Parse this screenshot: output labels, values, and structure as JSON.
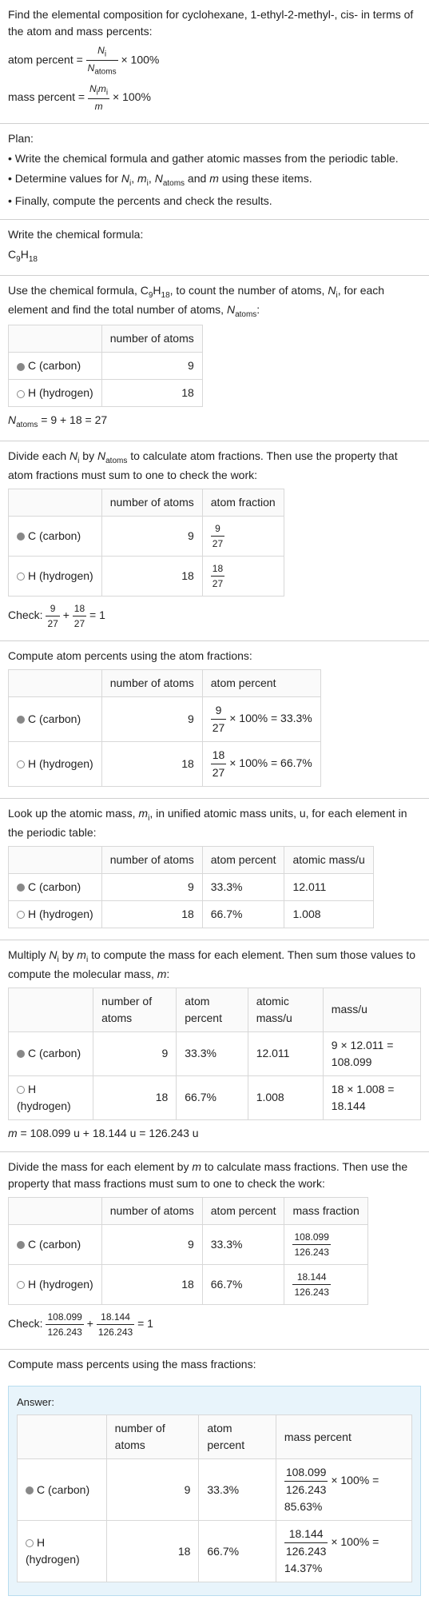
{
  "intro": {
    "line1": "Find the elemental composition for cyclohexane, 1-ethyl-2-methyl-, cis- in terms of the atom and mass percents:",
    "atom_percent_label": "atom percent =",
    "atom_percent_frac_num": "N",
    "atom_percent_frac_num_sub": "i",
    "atom_percent_frac_den": "N",
    "atom_percent_frac_den_sub": "atoms",
    "times100": " × 100%",
    "mass_percent_label": "mass percent =",
    "mass_percent_frac_num": "N",
    "mass_percent_frac_num_sub": "i",
    "mass_percent_frac_num2": "m",
    "mass_percent_frac_num2_sub": "i",
    "mass_percent_frac_den": "m"
  },
  "plan": {
    "heading": "Plan:",
    "b1": "• Write the chemical formula and gather atomic masses from the periodic table.",
    "b2a": "• Determine values for ",
    "b2b": ", ",
    "b2c": ", ",
    "b2d": " and ",
    "b2e": " using these items.",
    "b3": "• Finally, compute the percents and check the results."
  },
  "formula": {
    "label": "Write the chemical formula:",
    "c": "C",
    "csub": "9",
    "h": "H",
    "hsub": "18"
  },
  "count": {
    "intro_a": "Use the chemical formula, C",
    "intro_b": "H",
    "intro_c": ", to count the number of atoms, ",
    "intro_d": ", for each element and find the total number of atoms, ",
    "intro_e": ":",
    "cols": {
      "num_atoms": "number of atoms"
    },
    "carbon_label": "C (carbon)",
    "carbon_n": "9",
    "hydrogen_label": "H (hydrogen)",
    "hydrogen_n": "18",
    "sum": " = 9 + 18 = 27"
  },
  "atomfrac": {
    "intro_a": "Divide each ",
    "intro_b": " by ",
    "intro_c": " to calculate atom fractions. Then use the property that atom fractions must sum to one to check the work:",
    "cols": {
      "num_atoms": "number of atoms",
      "atom_fraction": "atom fraction"
    },
    "carbon_num": "9",
    "carbon_den": "27",
    "hydrogen_num": "18",
    "hydrogen_den": "27",
    "check_label": "Check: ",
    "check_end": " = 1"
  },
  "atompercent": {
    "intro": "Compute atom percents using the atom fractions:",
    "cols": {
      "num_atoms": "number of atoms",
      "atom_percent": "atom percent"
    },
    "carbon_n": "9",
    "carbon_num": "9",
    "carbon_den": "27",
    "carbon_mul": " × 100% = 33.3%",
    "hydrogen_n": "18",
    "hydrogen_num": "18",
    "hydrogen_den": "27",
    "hydrogen_mul": " × 100% = 66.7%"
  },
  "atomicmass": {
    "intro_a": "Look up the atomic mass, ",
    "intro_b": ", in unified atomic mass units, u, for each element in the periodic table:",
    "cols": {
      "num_atoms": "number of atoms",
      "atom_percent": "atom percent",
      "atomic_mass": "atomic mass/u"
    },
    "carbon_n": "9",
    "carbon_pct": "33.3%",
    "carbon_mass": "12.011",
    "hydrogen_n": "18",
    "hydrogen_pct": "66.7%",
    "hydrogen_mass": "1.008"
  },
  "elemmass": {
    "intro_a": "Multiply ",
    "intro_b": " by ",
    "intro_c": " to compute the mass for each element. Then sum those values to compute the molecular mass, ",
    "intro_d": ":",
    "cols": {
      "num_atoms": "number of atoms",
      "atom_percent": "atom percent",
      "atomic_mass": "atomic mass/u",
      "mass": "mass/u"
    },
    "carbon_n": "9",
    "carbon_pct": "33.3%",
    "carbon_mass": "12.011",
    "carbon_calc": "9 × 12.011 = 108.099",
    "hydrogen_n": "18",
    "hydrogen_pct": "66.7%",
    "hydrogen_mass": "1.008",
    "hydrogen_calc": "18 × 1.008 = 18.144",
    "sum": " = 108.099 u + 18.144 u = 126.243 u"
  },
  "massfrac": {
    "intro_a": "Divide the mass for each element by ",
    "intro_b": " to calculate mass fractions. Then use the property that mass fractions must sum to one to check the work:",
    "cols": {
      "num_atoms": "number of atoms",
      "atom_percent": "atom percent",
      "mass_fraction": "mass fraction"
    },
    "carbon_n": "9",
    "carbon_pct": "33.3%",
    "carbon_num": "108.099",
    "carbon_den": "126.243",
    "hydrogen_n": "18",
    "hydrogen_pct": "66.7%",
    "hydrogen_num": "18.144",
    "hydrogen_den": "126.243",
    "check_label": "Check: ",
    "check_end": " = 1"
  },
  "final": {
    "intro": "Compute mass percents using the mass fractions:",
    "answer_label": "Answer:",
    "cols": {
      "num_atoms": "number of atoms",
      "atom_percent": "atom percent",
      "mass_percent": "mass percent"
    },
    "carbon_n": "9",
    "carbon_pct": "33.3%",
    "carbon_num": "108.099",
    "carbon_den": "126.243",
    "carbon_res": " × 100% = 85.63%",
    "hydrogen_n": "18",
    "hydrogen_pct": "66.7%",
    "hydrogen_num": "18.144",
    "hydrogen_den": "126.243",
    "hydrogen_res": " × 100% = 14.37%"
  },
  "colors": {
    "text": "#222222",
    "border": "#d0d0d0",
    "table_border": "#d8d8d8",
    "gray": "#999999",
    "answer_bg": "#e8f4fb",
    "answer_border": "#b8ddef"
  }
}
